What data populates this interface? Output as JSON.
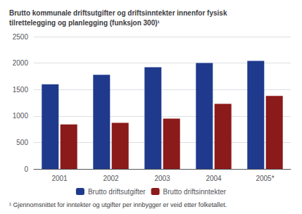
{
  "chart_data": {
    "type": "bar",
    "title": "Brutto kommunale driftsutgifter og driftsinntekter innenfor fysisk\ntilrettelegging og planlegging (funksjon 300)¹",
    "footnote": "¹ Gjennomsnittet for inntekter og utgifter per innbygger er veid etter folketallet.",
    "categories": [
      "2001",
      "2002",
      "2003",
      "2004",
      "2005*"
    ],
    "series": [
      {
        "name": "Brutto driftsutgifter",
        "color": "#1F3A8C",
        "values": [
          1600,
          1780,
          1920,
          2000,
          2040
        ]
      },
      {
        "name": "Brutto driftsinntekter",
        "color": "#8B1A1A",
        "values": [
          840,
          870,
          950,
          1230,
          1380
        ]
      }
    ],
    "ylim": [
      0,
      2500
    ],
    "yticks": [
      0,
      500,
      1000,
      1500,
      2000,
      2500
    ],
    "grid": true,
    "legend": "bottom"
  }
}
